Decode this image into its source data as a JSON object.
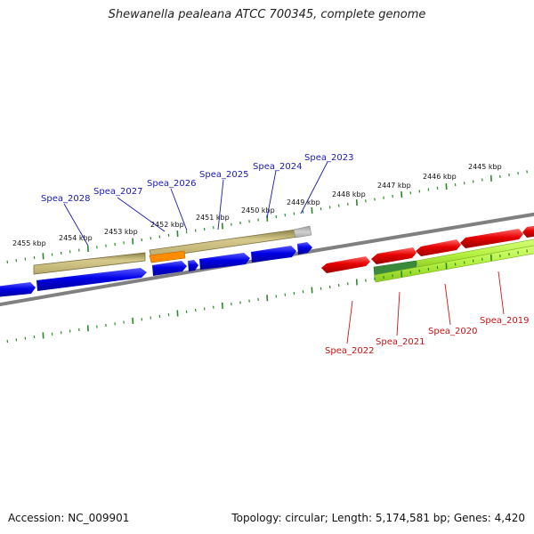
{
  "title": "Shewanella pealeana ATCC 700345, complete genome",
  "footer": {
    "accession": "Accession: NC_009901",
    "summary": "Topology: circular; Length: 5,174,581 bp; Genes: 4,420"
  },
  "colors": {
    "forward_gene": "#0000e6",
    "reverse_gene": "#e60000",
    "forward_label": "#1a1ab4",
    "reverse_label": "#c81414",
    "tick": "#2a8a2a",
    "backbone": "#808080",
    "cds_band": "#c8b97a",
    "rna_gene": "#ff8c00",
    "reverse_cds_band": "#b4f040",
    "reverse_cds_dark": "#3a8a3a"
  },
  "scale_labels": [
    "2455 kbp",
    "2454 kbp",
    "2453 kbp",
    "2452 kbp",
    "2451 kbp",
    "2450 kbp",
    "2449 kbp",
    "2448 kbp",
    "2447 kbp",
    "2446 kbp",
    "2445 kbp"
  ],
  "forward_genes": [
    "Spea_2028",
    "Spea_2027",
    "Spea_2026",
    "Spea_2025",
    "Spea_2024",
    "Spea_2023"
  ],
  "reverse_genes": [
    "Spea_2022",
    "Spea_2021",
    "Spea_2020",
    "Spea_2019"
  ]
}
